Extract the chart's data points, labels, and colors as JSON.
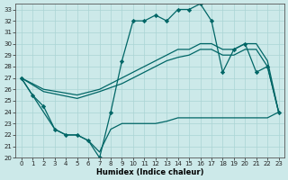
{
  "xlabel": "Humidex (Indice chaleur)",
  "xlim": [
    -0.5,
    23.5
  ],
  "ylim": [
    20,
    33.5
  ],
  "yticks": [
    20,
    21,
    22,
    23,
    24,
    25,
    26,
    27,
    28,
    29,
    30,
    31,
    32,
    33
  ],
  "xticks": [
    0,
    1,
    2,
    3,
    4,
    5,
    6,
    7,
    8,
    9,
    10,
    11,
    12,
    13,
    14,
    15,
    16,
    17,
    18,
    19,
    20,
    21,
    22,
    23
  ],
  "background_color": "#cce9e9",
  "grid_color": "#aad4d4",
  "line_color": "#006666",
  "line_width": 0.9,
  "marker": "D",
  "marker_size": 2.2,
  "line1_x": [
    0,
    1,
    2,
    3,
    4,
    5,
    6,
    7,
    8,
    9,
    10,
    11,
    12,
    13,
    14,
    15,
    16,
    17,
    18,
    19,
    20,
    21,
    22,
    23
  ],
  "line1_y": [
    27,
    25.5,
    24.5,
    22.5,
    22,
    22,
    21.5,
    20,
    24,
    28.5,
    32,
    32,
    32.5,
    32,
    33,
    33,
    33.5,
    32,
    27.5,
    29.5,
    30,
    27.5,
    28,
    24
  ],
  "line2_x": [
    0,
    2,
    5,
    7,
    9,
    10,
    11,
    12,
    13,
    14,
    15,
    16,
    17,
    18,
    19,
    20,
    21,
    22,
    23
  ],
  "line2_y": [
    27,
    26,
    25.5,
    26,
    27,
    27.5,
    28,
    28.5,
    29,
    29.5,
    29.5,
    30,
    30,
    29.5,
    29.5,
    30,
    30,
    28.5,
    24
  ],
  "line3_x": [
    0,
    2,
    5,
    7,
    9,
    10,
    11,
    12,
    13,
    14,
    15,
    16,
    17,
    18,
    19,
    20,
    21,
    22,
    23
  ],
  "line3_y": [
    27,
    25.8,
    25.2,
    25.8,
    26.5,
    27,
    27.5,
    28,
    28.5,
    28.8,
    29,
    29.5,
    29.5,
    29,
    29,
    29.5,
    29.5,
    28,
    24
  ],
  "line4_x": [
    0,
    3,
    4,
    5,
    6,
    7,
    8,
    9,
    10,
    11,
    12,
    13,
    14,
    15,
    16,
    17,
    18,
    19,
    20,
    21,
    22,
    23
  ],
  "line4_y": [
    27,
    22.5,
    22.0,
    22.0,
    21.5,
    20.5,
    22.5,
    23,
    23,
    23,
    23,
    23.2,
    23.5,
    23.5,
    23.5,
    23.5,
    23.5,
    23.5,
    23.5,
    23.5,
    23.5,
    24
  ]
}
